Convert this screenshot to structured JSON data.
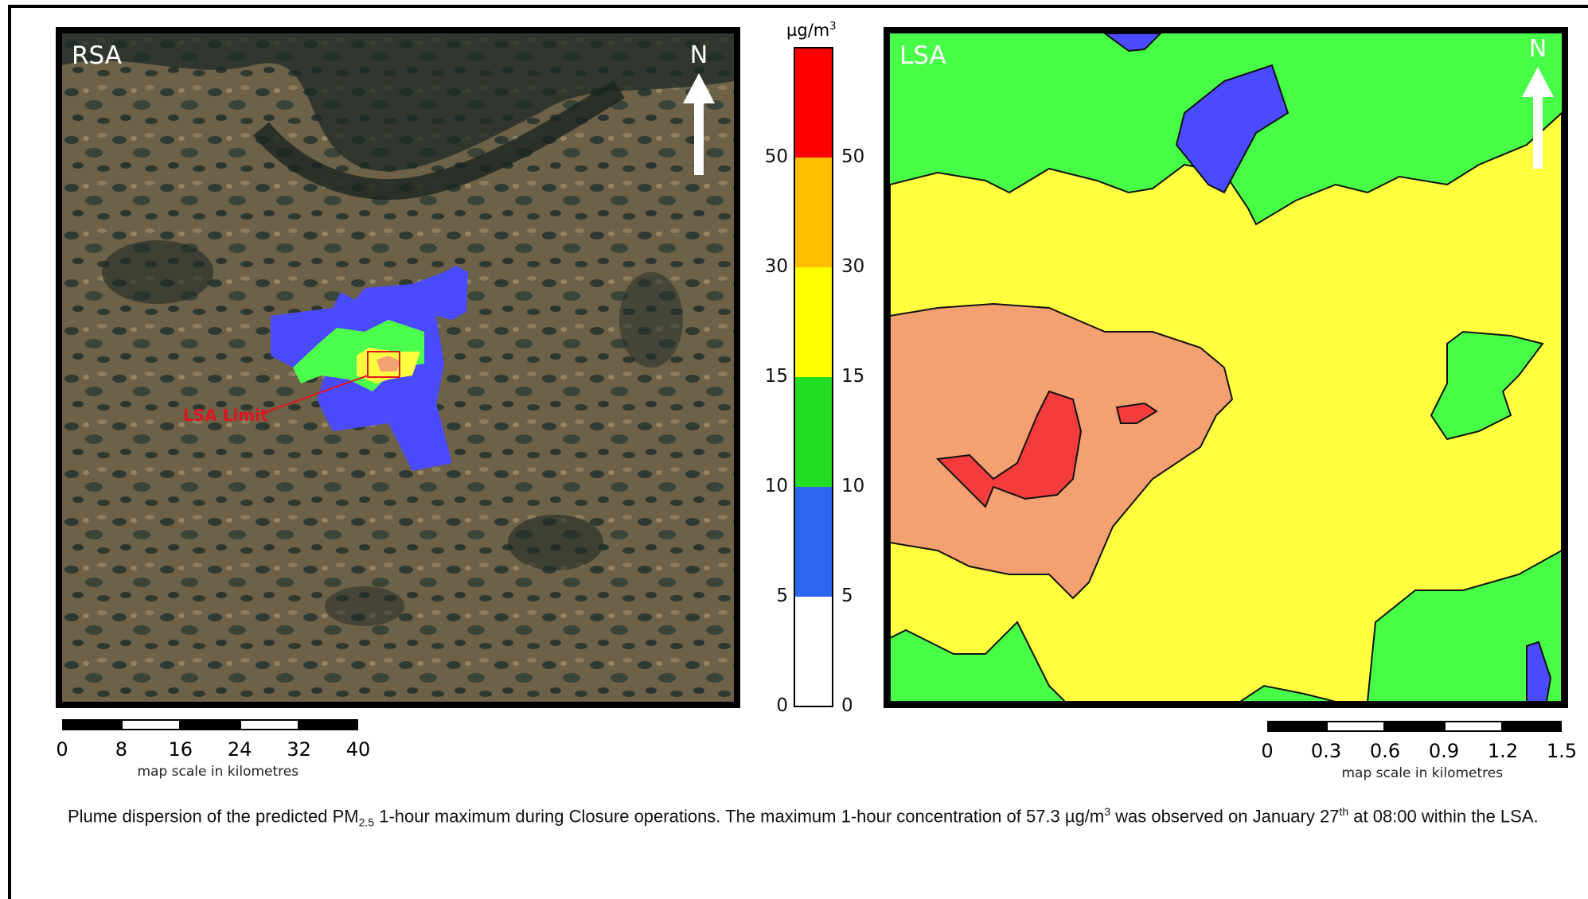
{
  "rsa": {
    "label": "RSA",
    "north": "N",
    "lsa_limit": "LSA Limit",
    "scale": {
      "ticks": [
        "0",
        "8",
        "16",
        "24",
        "32",
        "40"
      ],
      "caption": "map scale in kilometres"
    }
  },
  "lsa": {
    "label": "LSA",
    "north": "N",
    "scale": {
      "ticks": [
        "0",
        "0.3",
        "0.6",
        "0.9",
        "1.2",
        "1.5"
      ],
      "caption": "map scale in kilometres"
    }
  },
  "legend": {
    "unit_prefix": "µg/m",
    "unit_power": "3",
    "ticks": [
      "50",
      "30",
      "15",
      "10",
      "5",
      "0"
    ],
    "classes": [
      {
        "range": "> 50",
        "color": "#ff0000"
      },
      {
        "range": "30 – 50",
        "color": "#ffbf00"
      },
      {
        "range": "15 – 30",
        "color": "#ffff00"
      },
      {
        "range": "10 – 15",
        "color": "#22dd22"
      },
      {
        "range": "5 – 10",
        "color": "#2a66f0"
      },
      {
        "range": "0 – 5",
        "color": "#ffffff"
      }
    ]
  },
  "colors": {
    "plume_blue": "#4a4aff",
    "plume_green": "#4cff4c",
    "plume_yellow": "#ffff40",
    "plume_salmon": "#f4a070",
    "plume_red": "#f43c3c"
  },
  "caption": {
    "part1": "Plume dispersion of the predicted PM",
    "pm_sub": "2.5",
    "part2": " 1-hour maximum during Closure operations.  The maximum 1-hour concentration of 57.3 µg/m",
    "unit_sup": "3",
    "part3": " was observed on January 27",
    "date_sup": "th",
    "part4": " at 08:00 within the LSA."
  }
}
